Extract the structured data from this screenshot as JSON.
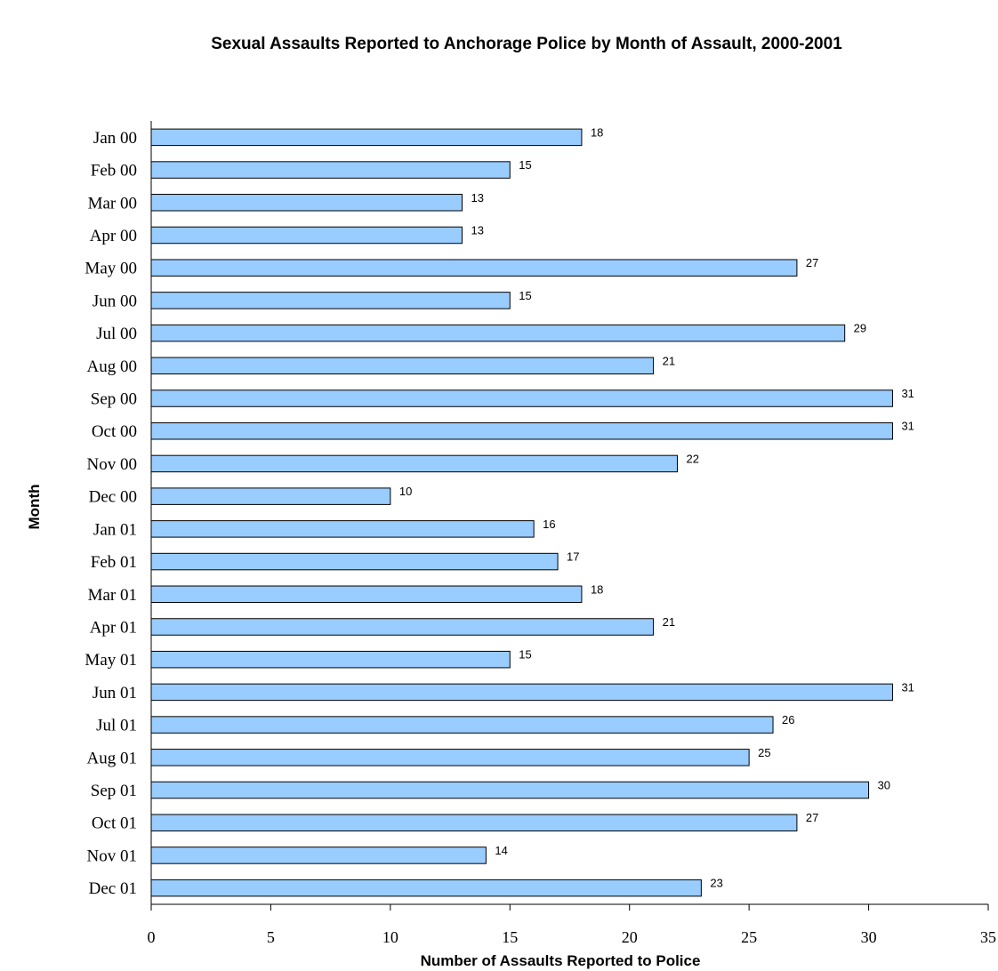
{
  "chart_data": {
    "type": "bar",
    "orientation": "horizontal",
    "title": "Sexual Assaults Reported to Anchorage Police by Month of Assault, 2000-2001",
    "xlabel": "Number of Assaults Reported to Police",
    "ylabel": "Month",
    "xlim": [
      0,
      35
    ],
    "x_ticks": [
      0,
      5,
      10,
      15,
      20,
      25,
      30,
      35
    ],
    "grid": false,
    "legend": "none",
    "bar_color": "#99CCFF",
    "categories": [
      "Jan 00",
      "Feb 00",
      "Mar 00",
      "Apr 00",
      "May 00",
      "Jun 00",
      "Jul 00",
      "Aug 00",
      "Sep 00",
      "Oct 00",
      "Nov 00",
      "Dec 00",
      "Jan 01",
      "Feb 01",
      "Mar 01",
      "Apr 01",
      "May 01",
      "Jun 01",
      "Jul 01",
      "Aug 01",
      "Sep 01",
      "Oct 01",
      "Nov 01",
      "Dec 01"
    ],
    "values": [
      18,
      15,
      13,
      13,
      27,
      15,
      29,
      21,
      31,
      31,
      22,
      10,
      16,
      17,
      18,
      21,
      15,
      31,
      26,
      25,
      30,
      27,
      14,
      23
    ]
  }
}
